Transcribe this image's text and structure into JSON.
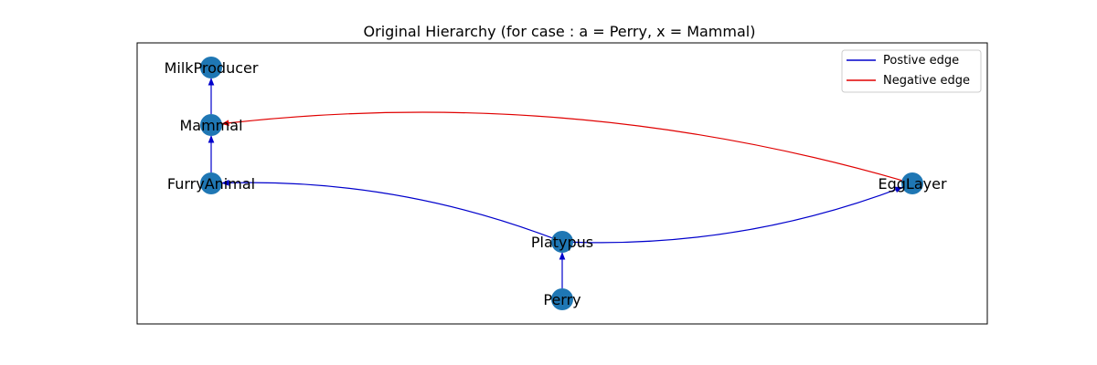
{
  "title": "Original Hierarchy (for case : a = Perry, x = Mammal)",
  "colors": {
    "node": "#1f77b4",
    "positive": "#0000cc",
    "negative": "#e00000"
  },
  "legend": {
    "positive_label": "Postive edge",
    "negative_label": "Negative edge"
  },
  "nodes": [
    {
      "id": "MilkProducer",
      "label": "MilkProducer"
    },
    {
      "id": "Mammal",
      "label": "Mammal"
    },
    {
      "id": "FurryAnimal",
      "label": "FurryAnimal"
    },
    {
      "id": "EggLayer",
      "label": "EggLayer"
    },
    {
      "id": "Platypus",
      "label": "Platypus"
    },
    {
      "id": "Perry",
      "label": "Perry"
    }
  ],
  "edges": [
    {
      "from": "Mammal",
      "to": "MilkProducer",
      "type": "positive"
    },
    {
      "from": "FurryAnimal",
      "to": "Mammal",
      "type": "positive"
    },
    {
      "from": "Platypus",
      "to": "FurryAnimal",
      "type": "positive"
    },
    {
      "from": "Platypus",
      "to": "EggLayer",
      "type": "positive"
    },
    {
      "from": "Perry",
      "to": "Platypus",
      "type": "positive"
    },
    {
      "from": "EggLayer",
      "to": "Mammal",
      "type": "negative"
    }
  ]
}
